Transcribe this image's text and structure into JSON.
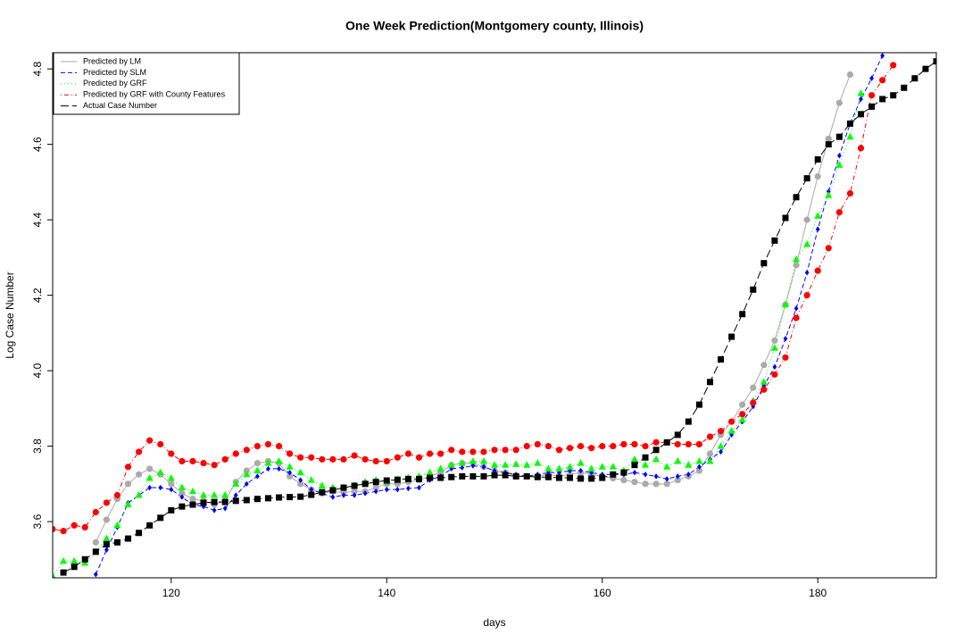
{
  "chart_data": {
    "type": "line",
    "title": "One Week Prediction(Montgomery county, Illinois)",
    "x_label": "days",
    "y_label": "Log Case Number",
    "xlim": [
      109,
      191
    ],
    "ylim": [
      3.451,
      4.843
    ],
    "xticks": [
      120,
      140,
      160,
      180
    ],
    "yticks": [
      3.6,
      3.8,
      {
        "value": 4,
        "label": "4.0"
      },
      4.2,
      4.4,
      4.6,
      4.8
    ],
    "legend_position": "topleft",
    "x": [
      109,
      110,
      111,
      112,
      113,
      114,
      115,
      116,
      117,
      118,
      119,
      120,
      121,
      122,
      123,
      124,
      125,
      126,
      127,
      128,
      129,
      130,
      131,
      132,
      133,
      134,
      135,
      136,
      137,
      138,
      139,
      140,
      141,
      142,
      143,
      144,
      145,
      146,
      147,
      148,
      149,
      150,
      151,
      152,
      153,
      154,
      155,
      156,
      157,
      158,
      159,
      160,
      161,
      162,
      163,
      164,
      165,
      166,
      167,
      168,
      169,
      170,
      171,
      172,
      173,
      174,
      175,
      176,
      177,
      178,
      179,
      180,
      181,
      182,
      183,
      184,
      185,
      186,
      187,
      188,
      189,
      190,
      191
    ],
    "series": [
      {
        "name": "Predicted by LM",
        "color": "#aaaaaa",
        "marker": "circle",
        "linestyle": "solid",
        "values": [
          null,
          null,
          null,
          null,
          3.545,
          3.605,
          3.66,
          3.7,
          3.725,
          3.74,
          3.725,
          3.7,
          3.675,
          3.66,
          3.655,
          3.645,
          3.655,
          3.705,
          3.735,
          3.755,
          3.76,
          3.755,
          3.72,
          3.7,
          3.685,
          3.675,
          3.68,
          3.677,
          3.68,
          3.68,
          3.69,
          3.7,
          3.7,
          3.705,
          3.71,
          3.72,
          3.73,
          3.75,
          3.755,
          3.755,
          3.745,
          3.735,
          3.73,
          3.72,
          3.72,
          3.72,
          3.725,
          3.72,
          3.725,
          3.73,
          3.725,
          3.72,
          3.715,
          3.71,
          3.705,
          3.7,
          3.7,
          3.7,
          3.71,
          3.72,
          3.735,
          3.78,
          3.83,
          3.865,
          3.91,
          3.955,
          4.015,
          4.08,
          4.175,
          4.28,
          4.4,
          4.515,
          4.615,
          4.71,
          4.785,
          null,
          null,
          null,
          null,
          null,
          null,
          null,
          null
        ]
      },
      {
        "name": "Predicted by SLM",
        "color": "#0000ff",
        "marker": "diamond",
        "linestyle": "dashed",
        "values": [
          null,
          null,
          null,
          null,
          3.46,
          3.525,
          3.585,
          3.65,
          3.67,
          3.69,
          3.69,
          3.685,
          3.665,
          3.645,
          3.64,
          3.63,
          3.635,
          3.67,
          3.7,
          3.72,
          3.74,
          3.74,
          3.73,
          3.71,
          3.685,
          3.675,
          3.665,
          3.67,
          3.67,
          3.675,
          3.68,
          3.685,
          3.685,
          3.688,
          3.69,
          3.71,
          3.72,
          3.74,
          3.743,
          3.748,
          3.745,
          3.735,
          3.73,
          3.725,
          3.72,
          3.725,
          3.73,
          3.73,
          3.735,
          3.735,
          3.73,
          3.725,
          3.725,
          3.725,
          3.73,
          3.725,
          3.72,
          3.713,
          3.72,
          3.725,
          3.745,
          3.765,
          3.785,
          3.83,
          3.865,
          3.905,
          3.96,
          4.01,
          4.085,
          4.165,
          4.26,
          4.375,
          4.475,
          4.57,
          4.655,
          4.72,
          4.775,
          4.835,
          null,
          null,
          null,
          null,
          null
        ]
      },
      {
        "name": "Predicted by GRF",
        "color": "#00ff00",
        "marker": "triangle",
        "linestyle": "dotted",
        "values": [
          3.455,
          3.495,
          3.495,
          3.49,
          3.52,
          3.555,
          3.59,
          3.645,
          3.67,
          3.715,
          3.73,
          3.715,
          3.69,
          3.68,
          3.67,
          3.67,
          3.67,
          3.7,
          3.725,
          3.735,
          3.755,
          3.76,
          3.745,
          3.73,
          3.71,
          3.695,
          3.69,
          3.69,
          3.695,
          3.705,
          3.71,
          3.705,
          3.712,
          3.716,
          3.72,
          3.73,
          3.74,
          3.75,
          3.755,
          3.76,
          3.76,
          3.75,
          3.75,
          3.752,
          3.75,
          3.755,
          3.74,
          3.74,
          3.745,
          3.755,
          3.74,
          3.745,
          3.745,
          3.735,
          3.765,
          3.75,
          3.765,
          3.745,
          3.76,
          3.75,
          3.76,
          3.76,
          3.8,
          3.84,
          3.87,
          3.92,
          3.97,
          4.06,
          4.175,
          4.295,
          4.335,
          4.41,
          4.465,
          4.545,
          4.62,
          4.735,
          null,
          null,
          null,
          null,
          null,
          null,
          null
        ]
      },
      {
        "name": "Predicted by GRF with County Features",
        "color": "#ff0000",
        "marker": "circle",
        "linestyle": "dotdash",
        "values": [
          3.58,
          3.575,
          3.59,
          3.585,
          3.625,
          3.65,
          3.67,
          3.745,
          3.785,
          3.815,
          3.805,
          3.78,
          3.76,
          3.76,
          3.755,
          3.75,
          3.765,
          3.78,
          3.79,
          3.8,
          3.805,
          3.8,
          3.78,
          3.77,
          3.77,
          3.765,
          3.765,
          3.765,
          3.775,
          3.765,
          3.76,
          3.76,
          3.77,
          3.78,
          3.77,
          3.78,
          3.78,
          3.79,
          3.785,
          3.785,
          3.785,
          3.79,
          3.79,
          3.79,
          3.8,
          3.805,
          3.8,
          3.79,
          3.795,
          3.8,
          3.795,
          3.8,
          3.8,
          3.805,
          3.805,
          3.8,
          3.81,
          3.81,
          3.805,
          3.805,
          3.805,
          3.825,
          3.84,
          3.865,
          3.885,
          3.915,
          3.95,
          3.99,
          4.035,
          4.14,
          4.2,
          4.265,
          4.325,
          4.42,
          4.47,
          4.59,
          4.73,
          4.77,
          4.81,
          null,
          null,
          null,
          null
        ]
      },
      {
        "name": "Actual Case Number",
        "color": "#000000",
        "marker": "square",
        "linestyle": "longdash",
        "values": [
          null,
          3.465,
          3.48,
          3.5,
          3.52,
          3.54,
          3.545,
          3.555,
          3.57,
          3.59,
          3.61,
          3.63,
          3.64,
          3.645,
          3.65,
          3.652,
          3.652,
          3.655,
          3.657,
          3.66,
          3.662,
          3.664,
          3.665,
          3.666,
          3.671,
          3.678,
          3.683,
          3.69,
          3.695,
          3.7,
          3.705,
          3.709,
          3.711,
          3.713,
          3.713,
          3.716,
          3.716,
          3.718,
          3.72,
          3.72,
          3.72,
          3.723,
          3.723,
          3.72,
          3.72,
          3.718,
          3.718,
          3.716,
          3.716,
          3.714,
          3.714,
          3.716,
          3.725,
          3.73,
          3.75,
          3.77,
          3.79,
          3.81,
          3.83,
          3.865,
          3.91,
          3.97,
          4.03,
          4.09,
          4.15,
          4.215,
          4.285,
          4.345,
          4.405,
          4.46,
          4.51,
          4.56,
          4.6,
          4.62,
          4.655,
          4.68,
          4.7,
          4.72,
          4.73,
          4.75,
          4.775,
          4.8,
          4.82
        ]
      }
    ]
  }
}
